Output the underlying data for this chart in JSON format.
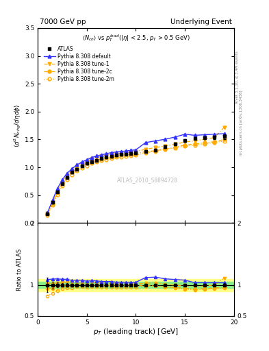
{
  "title_left": "7000 GeV pp",
  "title_right": "Underlying Event",
  "xlabel": "p_{T} (leading track) [GeV]",
  "ylabel_main": "\\langle d^2 N_{chg}/d\\eta d\\phi \\rangle",
  "ylabel_ratio": "Ratio to ATLAS",
  "watermark": "ATLAS_2010_S8894728",
  "xlim": [
    0,
    20
  ],
  "ylim_main": [
    0,
    3.5
  ],
  "ylim_ratio": [
    0.5,
    2.0
  ],
  "yticks_main": [
    0,
    0.5,
    1.0,
    1.5,
    2.0,
    2.5,
    3.0,
    3.5
  ],
  "yticks_ratio": [
    0.5,
    1.0,
    2.0
  ],
  "pt_atlas": [
    1.0,
    1.5,
    2.0,
    2.5,
    3.0,
    3.5,
    4.0,
    4.5,
    5.0,
    5.5,
    6.0,
    6.5,
    7.0,
    7.5,
    8.0,
    8.5,
    9.0,
    9.5,
    10.0,
    11.0,
    12.0,
    13.0,
    14.0,
    15.0,
    16.0,
    17.0,
    18.0,
    19.0
  ],
  "val_atlas": [
    0.17,
    0.37,
    0.56,
    0.71,
    0.82,
    0.91,
    0.97,
    1.02,
    1.07,
    1.1,
    1.13,
    1.16,
    1.18,
    1.2,
    1.22,
    1.23,
    1.24,
    1.25,
    1.26,
    1.29,
    1.31,
    1.37,
    1.42,
    1.48,
    1.52,
    1.53,
    1.54,
    1.55
  ],
  "err_atlas": [
    0.02,
    0.02,
    0.02,
    0.02,
    0.02,
    0.02,
    0.02,
    0.02,
    0.02,
    0.02,
    0.02,
    0.02,
    0.02,
    0.02,
    0.02,
    0.02,
    0.02,
    0.02,
    0.02,
    0.02,
    0.02,
    0.02,
    0.02,
    0.02,
    0.02,
    0.03,
    0.03,
    0.04
  ],
  "pt_pythia": [
    1.0,
    1.5,
    2.0,
    2.5,
    3.0,
    3.5,
    4.0,
    4.5,
    5.0,
    5.5,
    6.0,
    6.5,
    7.0,
    7.5,
    8.0,
    8.5,
    9.0,
    9.5,
    10.0,
    11.0,
    12.0,
    13.0,
    14.0,
    15.0,
    16.0,
    17.0,
    18.0,
    19.0
  ],
  "val_default": [
    0.185,
    0.405,
    0.615,
    0.775,
    0.895,
    0.975,
    1.045,
    1.095,
    1.135,
    1.175,
    1.205,
    1.225,
    1.245,
    1.265,
    1.275,
    1.285,
    1.295,
    1.305,
    1.315,
    1.445,
    1.475,
    1.505,
    1.545,
    1.595,
    1.575,
    1.585,
    1.595,
    1.605
  ],
  "val_tune1": [
    0.175,
    0.375,
    0.575,
    0.735,
    0.855,
    0.945,
    1.015,
    1.065,
    1.105,
    1.145,
    1.175,
    1.195,
    1.215,
    1.235,
    1.245,
    1.255,
    1.265,
    1.275,
    1.285,
    1.325,
    1.355,
    1.385,
    1.415,
    1.455,
    1.475,
    1.505,
    1.535,
    1.72
  ],
  "val_tune2c": [
    0.16,
    0.35,
    0.55,
    0.7,
    0.82,
    0.91,
    0.98,
    1.03,
    1.07,
    1.1,
    1.13,
    1.15,
    1.17,
    1.19,
    1.21,
    1.22,
    1.23,
    1.24,
    1.25,
    1.28,
    1.3,
    1.33,
    1.36,
    1.4,
    1.42,
    1.44,
    1.46,
    1.5
  ],
  "val_tune2m": [
    0.14,
    0.32,
    0.51,
    0.67,
    0.78,
    0.87,
    0.94,
    0.99,
    1.03,
    1.07,
    1.1,
    1.12,
    1.14,
    1.16,
    1.18,
    1.19,
    1.2,
    1.21,
    1.22,
    1.26,
    1.29,
    1.32,
    1.35,
    1.38,
    1.4,
    1.42,
    1.45,
    1.47
  ],
  "color_atlas": "#000000",
  "color_default": "#3333ff",
  "color_tune1": "#ffaa00",
  "color_tune2c": "#ffaa00",
  "color_tune2m": "#ffaa00",
  "band_green_lo": 0.95,
  "band_green_hi": 1.05,
  "band_yellow_lo": 0.9,
  "band_yellow_hi": 1.1
}
